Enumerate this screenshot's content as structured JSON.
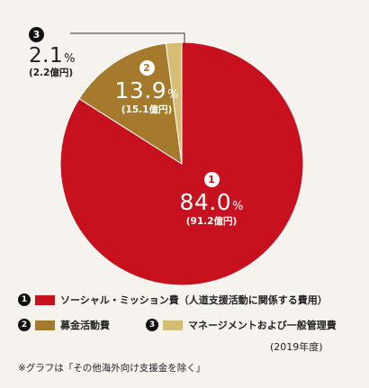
{
  "chart_data": {
    "type": "pie",
    "slices": [
      {
        "id": 1,
        "label": "ソーシャル・ミッション費（人道支援活動に関係する費用）",
        "value": 84.0,
        "value_text": "84.0",
        "pct_sign": "%",
        "amount": "(91.2億円)",
        "color": "#c8111f"
      },
      {
        "id": 2,
        "label": "募金活動費",
        "value": 13.9,
        "value_text": "13.9",
        "pct_sign": "%",
        "amount": "(15.1億円)",
        "color": "#a67a2d"
      },
      {
        "id": 3,
        "label": "マネージメントおよび一般管理費",
        "value": 2.1,
        "value_text": "2.1",
        "pct_sign": "%",
        "amount": "(2.2億円)",
        "color": "#d7bd74"
      }
    ],
    "year_note": "(2019年度)",
    "footnote": "※グラフは「その他海外向け支援金を除く」"
  }
}
